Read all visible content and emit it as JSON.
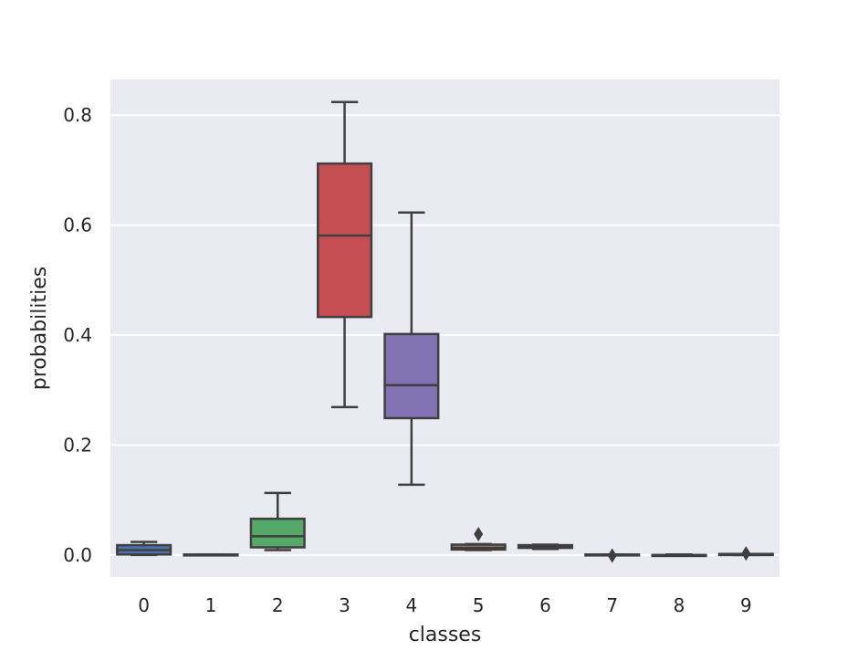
{
  "chart_data": {
    "type": "boxplot",
    "xlabel": "classes",
    "ylabel": "probabilities",
    "categories": [
      "0",
      "1",
      "2",
      "3",
      "4",
      "5",
      "6",
      "7",
      "8",
      "9"
    ],
    "ylim": [
      -0.04,
      0.865
    ],
    "yticks": [
      0.0,
      0.2,
      0.4,
      0.6,
      0.8
    ],
    "ytick_labels": [
      "0.0",
      "0.2",
      "0.4",
      "0.6",
      "0.8"
    ],
    "grid": true,
    "colors": {
      "background": "#EAEAF2",
      "grid": "#FFFFFF",
      "line": "#3F3F3F",
      "boxes": [
        "#4C72B0",
        "#DD8452",
        "#55A868",
        "#C44E52",
        "#8172B3",
        "#937860",
        "#DA8BC3",
        "#8C8C8C",
        "#CCB974",
        "#64B5CD"
      ]
    },
    "boxes": [
      {
        "category": "0",
        "whisker_low": 0.0,
        "q1": 0.001,
        "median": 0.009,
        "q3": 0.018,
        "whisker_high": 0.024,
        "outliers": []
      },
      {
        "category": "1",
        "whisker_low": 0.0,
        "q1": 0.0,
        "median": 0.0,
        "q3": 0.001,
        "whisker_high": 0.001,
        "outliers": []
      },
      {
        "category": "2",
        "whisker_low": 0.009,
        "q1": 0.014,
        "median": 0.034,
        "q3": 0.066,
        "whisker_high": 0.113,
        "outliers": []
      },
      {
        "category": "3",
        "whisker_low": 0.269,
        "q1": 0.433,
        "median": 0.581,
        "q3": 0.712,
        "whisker_high": 0.824,
        "outliers": []
      },
      {
        "category": "4",
        "whisker_low": 0.128,
        "q1": 0.249,
        "median": 0.309,
        "q3": 0.402,
        "whisker_high": 0.623,
        "outliers": []
      },
      {
        "category": "5",
        "whisker_low": 0.009,
        "q1": 0.01,
        "median": 0.013,
        "q3": 0.019,
        "whisker_high": 0.02,
        "outliers": [
          0.038
        ]
      },
      {
        "category": "6",
        "whisker_low": 0.011,
        "q1": 0.013,
        "median": 0.015,
        "q3": 0.018,
        "whisker_high": 0.019,
        "outliers": []
      },
      {
        "category": "7",
        "whisker_low": 0.0,
        "q1": 0.0,
        "median": 0.0,
        "q3": 0.001,
        "whisker_high": 0.001,
        "outliers": [
          -0.001
        ]
      },
      {
        "category": "8",
        "whisker_low": 0.0,
        "q1": 0.0,
        "median": 0.0,
        "q3": 0.0,
        "whisker_high": 0.001,
        "outliers": []
      },
      {
        "category": "9",
        "whisker_low": 0.0,
        "q1": 0.0,
        "median": 0.001,
        "q3": 0.002,
        "whisker_high": 0.002,
        "outliers": [
          0.003
        ]
      }
    ]
  }
}
